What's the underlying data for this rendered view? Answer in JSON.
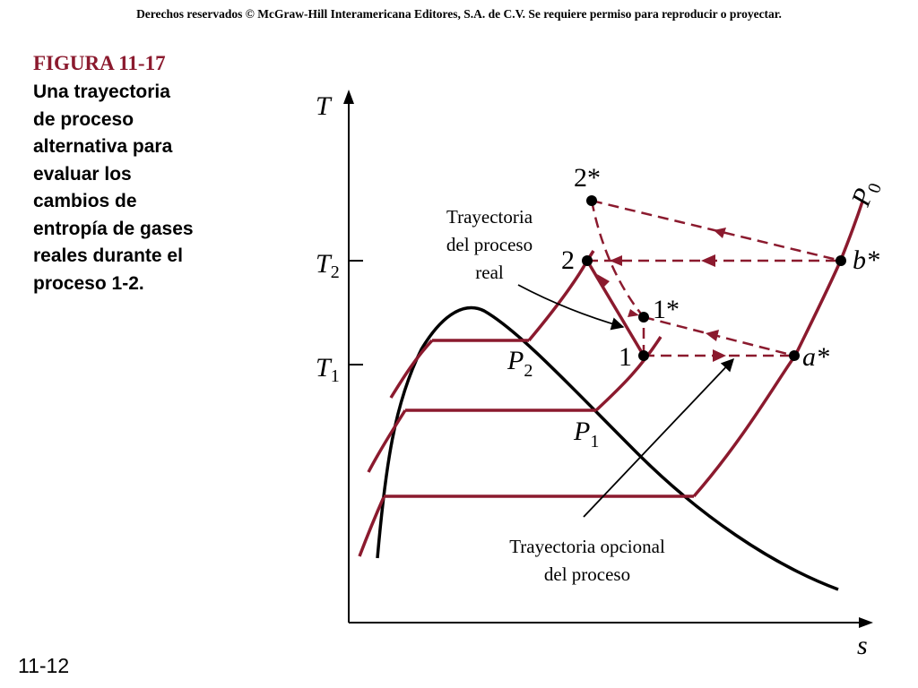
{
  "copyright": "Derechos reservados © McGraw-Hill Interamericana Editores, S.A. de C.V. Se requiere permiso para reproducir o proyectar.",
  "figure": {
    "label": "FIGURA 11-17",
    "caption_lines": [
      "Una trayectoria",
      "de proceso",
      "alternativa para",
      "evaluar los",
      "cambios de",
      "entropía de gases",
      "reales durante el",
      "proceso 1-2."
    ]
  },
  "slide_number": "11-12",
  "axes": {
    "y_label": "T",
    "x_label": "s",
    "t2": {
      "base": "T",
      "sub": "2"
    },
    "t1": {
      "base": "T",
      "sub": "1"
    }
  },
  "isobars": {
    "p0": {
      "base": "P",
      "sub": "0"
    },
    "p2": {
      "base": "P",
      "sub": "2"
    },
    "p1": {
      "base": "P",
      "sub": "1"
    }
  },
  "states": {
    "s2star": "2*",
    "s2": "2",
    "s1star": "1*",
    "s1": "1",
    "sbstar": "b*",
    "sastar": "a*"
  },
  "annotations": {
    "actual_path": [
      "Trayectoria",
      "del proceso",
      "real"
    ],
    "alternative_path": [
      "Trayectoria opcional",
      "del proceso"
    ]
  },
  "colors": {
    "process": "#8b1a2e",
    "dome": "#000000",
    "figure_label": "#8b1a2e"
  }
}
